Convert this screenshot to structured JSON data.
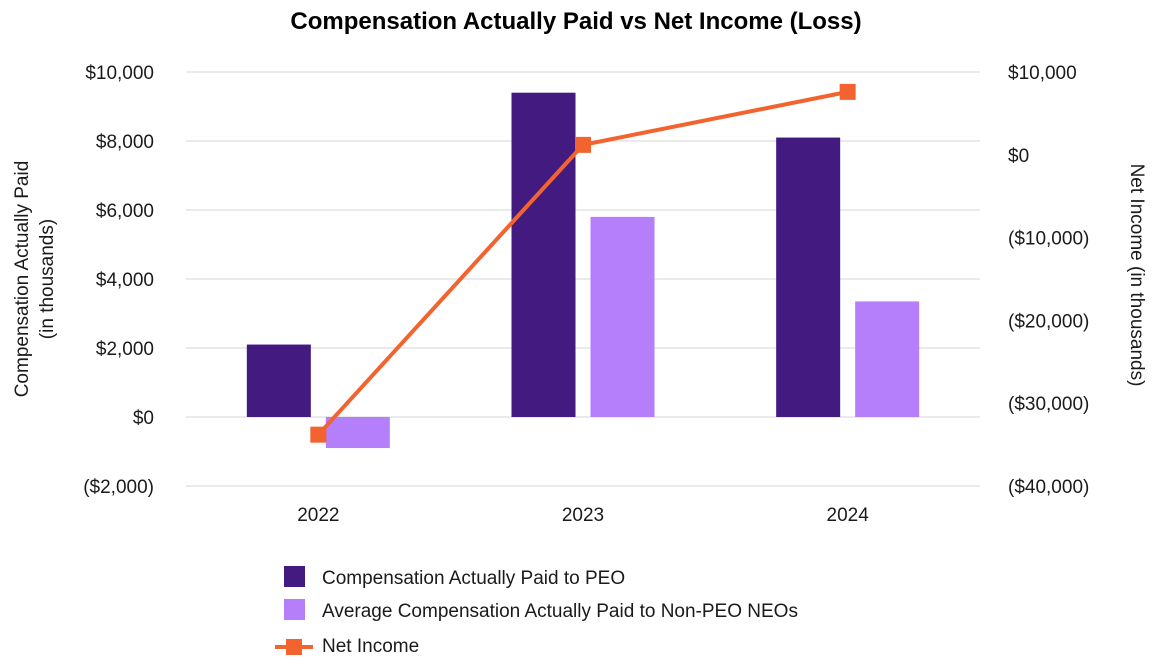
{
  "chart_data": {
    "type": "bar",
    "title": "Compensation Actually Paid vs Net Income (Loss)",
    "categories": [
      "2022",
      "2023",
      "2024"
    ],
    "series": [
      {
        "name": "Compensation Actually Paid to PEO",
        "type": "bar",
        "axis": "left",
        "color": "#431a80",
        "values": [
          2100,
          9400,
          8100
        ]
      },
      {
        "name": "Average Compensation Actually Paid to Non-PEO NEOs",
        "type": "bar",
        "axis": "left",
        "color": "#b57efb",
        "values": [
          -900,
          5800,
          3350
        ]
      },
      {
        "name": "Net Income",
        "type": "line",
        "axis": "right",
        "color": "#f2632f",
        "marker": "square",
        "values": [
          -33800,
          1200,
          7600
        ]
      }
    ],
    "left_axis": {
      "label_line1": "Compensation Actually Paid",
      "label_line2": "(in thousands)",
      "range": [
        -2000,
        10000
      ],
      "ticks": [
        10000,
        8000,
        6000,
        4000,
        2000,
        0,
        -2000
      ],
      "tick_labels": [
        "$10,000",
        "$8,000",
        "$6,000",
        "$4,000",
        "$2,000",
        "$0",
        "($2,000)"
      ]
    },
    "right_axis": {
      "label": "Net Income (in thousands)",
      "range": [
        -40000,
        10000
      ],
      "ticks": [
        10000,
        0,
        -10000,
        -20000,
        -30000,
        -40000
      ],
      "tick_labels": [
        "$10,000",
        "$0",
        "($10,000)",
        "($20,000)",
        "($30,000)",
        "($40,000)"
      ]
    },
    "grid": true,
    "legend_position": "bottom"
  }
}
